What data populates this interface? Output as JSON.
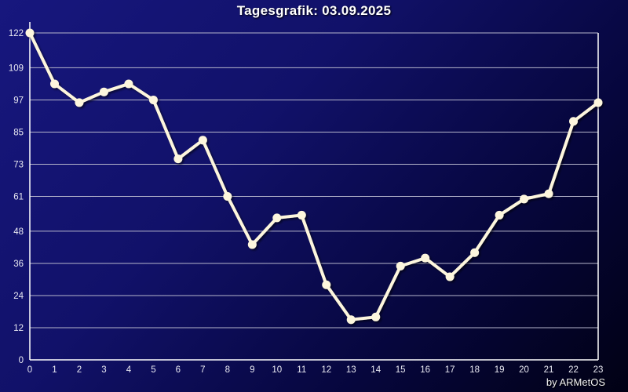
{
  "title": "Tagesgrafik: 03.09.2025",
  "credit": "by ARMetOS",
  "colors": {
    "background_start": "#17177e",
    "background_end": "#010114",
    "line": "#fdf6dd",
    "marker": "#fdf6dd",
    "grid": "#b6b6cc",
    "axis": "#ffffff",
    "title_text": "#ffffff",
    "tick_text": "#e9e9f2"
  },
  "chart_data": {
    "type": "line",
    "title": "Tagesgrafik: 03.09.2025",
    "xlabel": "",
    "ylabel": "",
    "x": [
      0,
      1,
      2,
      3,
      4,
      5,
      6,
      7,
      8,
      9,
      10,
      11,
      12,
      13,
      14,
      15,
      16,
      17,
      18,
      19,
      20,
      21,
      22,
      23
    ],
    "values": [
      122,
      103,
      96,
      100,
      103,
      97,
      75,
      82,
      61,
      43,
      53,
      54,
      28,
      15,
      16,
      35,
      38,
      31,
      40,
      54,
      60,
      62,
      89,
      96
    ],
    "ylim": [
      0,
      122
    ],
    "yticks": [
      0,
      12,
      24,
      36,
      48,
      61,
      73,
      85,
      97,
      109,
      122
    ],
    "grid": true,
    "legend_position": "none",
    "marker": "circle"
  }
}
